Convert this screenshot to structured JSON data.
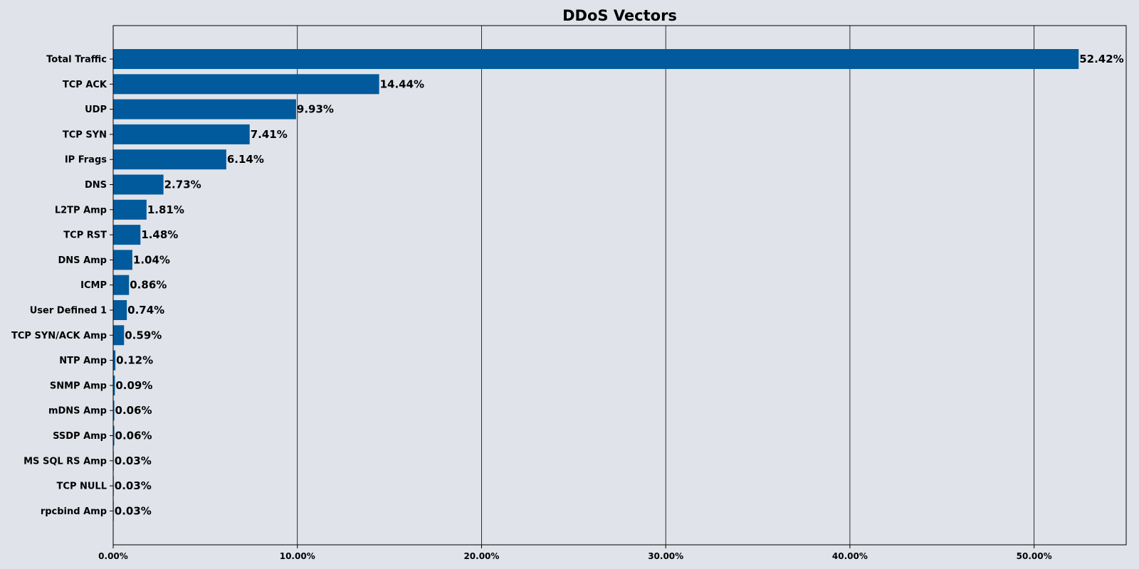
{
  "chart_data": {
    "type": "bar",
    "orientation": "horizontal",
    "title": "DDoS Vectors",
    "xlabel": "",
    "ylabel": "",
    "xlim": [
      0,
      55
    ],
    "x_ticks": [
      0,
      10,
      20,
      30,
      40,
      50
    ],
    "x_tick_labels": [
      "0.00%",
      "10.00%",
      "20.00%",
      "30.00%",
      "40.00%",
      "50.00%"
    ],
    "grid": "vertical",
    "bar_color": "#005a9c",
    "background_color": "#e0e3ea",
    "categories": [
      "Total Traffic",
      "TCP ACK",
      "UDP",
      "TCP SYN",
      "IP Frags",
      "DNS",
      "L2TP Amp",
      "TCP RST",
      "DNS Amp",
      "ICMP",
      "User Defined 1",
      "TCP SYN/ACK Amp",
      "NTP Amp",
      "SNMP Amp",
      "mDNS Amp",
      "SSDP Amp",
      "MS SQL RS Amp",
      "TCP NULL",
      "rpcbind Amp"
    ],
    "values": [
      52.42,
      14.44,
      9.93,
      7.41,
      6.14,
      2.73,
      1.81,
      1.48,
      1.04,
      0.86,
      0.74,
      0.59,
      0.12,
      0.09,
      0.06,
      0.06,
      0.03,
      0.03,
      0.03
    ],
    "value_labels": [
      "52.42%",
      "14.44%",
      "9.93%",
      "7.41%",
      "6.14%",
      "2.73%",
      "1.81%",
      "1.48%",
      "1.04%",
      "0.86%",
      "0.74%",
      "0.59%",
      "0.12%",
      "0.09%",
      "0.06%",
      "0.06%",
      "0.03%",
      "0.03%",
      "0.03%"
    ]
  }
}
